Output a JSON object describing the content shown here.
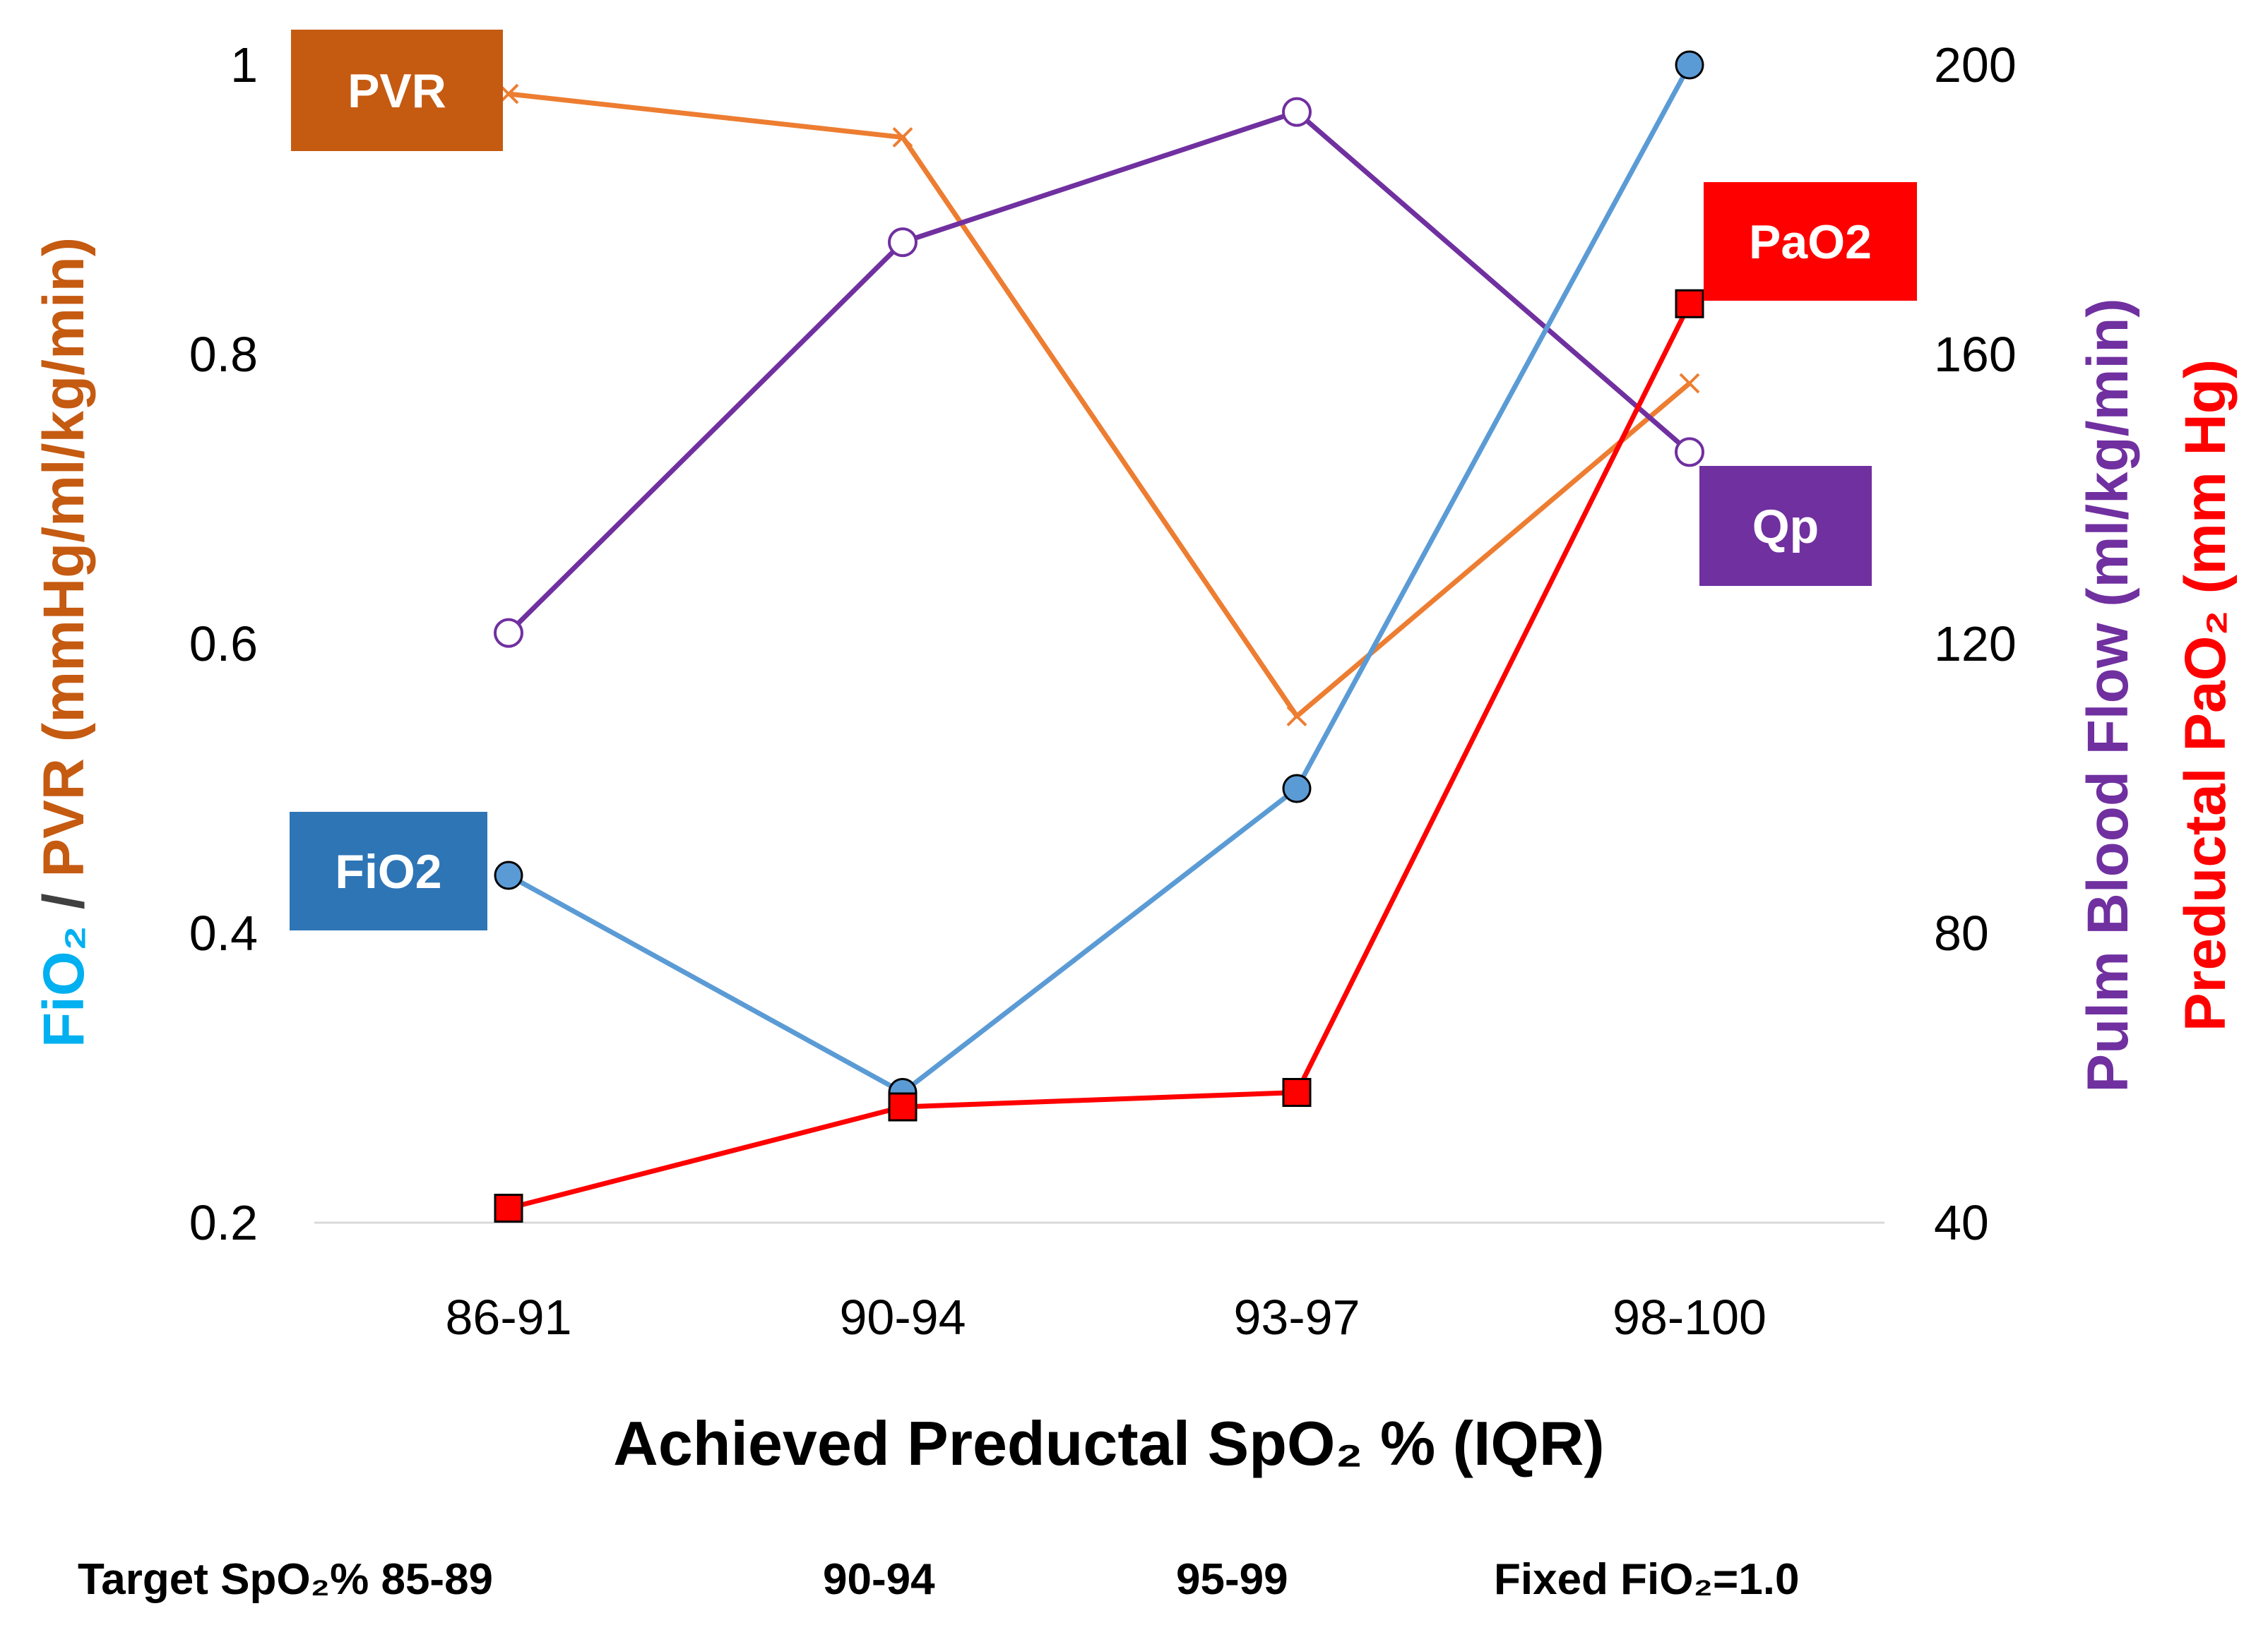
{
  "chart_data": {
    "type": "line",
    "categories": [
      "86-91",
      "90-94",
      "93-97",
      "98-100"
    ],
    "xlabel": "Achieved Preductal SpO₂ % (IQR)",
    "y_left": {
      "label_parts": [
        {
          "text": "FiO₂",
          "color": "#00B0F0"
        },
        {
          "text": " / ",
          "color": "#404040"
        },
        {
          "text": "PVR (mmHg/ml/kg/min)",
          "color": "#C55A11"
        }
      ],
      "ticks": [
        "0.2",
        "0.4",
        "0.6",
        "0.8",
        "1"
      ],
      "range": [
        0.2,
        1.0
      ]
    },
    "y_right": {
      "label_line1_parts": [
        {
          "text": "Pulm Blood Flow (ml/kg/min)",
          "color": "#7030A0"
        }
      ],
      "label_line2_parts": [
        {
          "text": "Preductal PaO₂ (mm Hg)",
          "color": "#FF0000"
        }
      ],
      "ticks": [
        "40",
        "80",
        "120",
        "160",
        "200"
      ],
      "range": [
        40,
        200
      ]
    },
    "series": [
      {
        "name": "PVR",
        "axis": "left",
        "color": "#ED7D31",
        "marker": "x",
        "values": [
          0.98,
          0.95,
          0.55,
          0.78
        ]
      },
      {
        "name": "Qp",
        "axis": "right",
        "color": "#7030A0",
        "marker": "open-circle",
        "values": [
          121.5,
          175.5,
          193.5,
          146.5
        ]
      },
      {
        "name": "FiO2",
        "axis": "left",
        "color": "#5B9BD5",
        "marker": "filled-circle",
        "values": [
          0.44,
          0.29,
          0.5,
          1.0
        ]
      },
      {
        "name": "PaO2",
        "axis": "right",
        "color": "#FF0000",
        "marker": "square",
        "values": [
          42,
          56,
          58,
          167
        ]
      }
    ],
    "tags": [
      {
        "text": "PVR",
        "bg": "#C55A11"
      },
      {
        "text": "FiO2",
        "bg": "#2E75B6"
      },
      {
        "text": "PaO2",
        "bg": "#FF0000"
      },
      {
        "text": "Qp",
        "bg": "#7030A0"
      }
    ],
    "footer": {
      "targets": [
        "Target SpO₂% 85-89",
        "90-94",
        "95-99",
        "Fixed FiO₂=1.0"
      ]
    },
    "grid": false,
    "legend": "none"
  }
}
